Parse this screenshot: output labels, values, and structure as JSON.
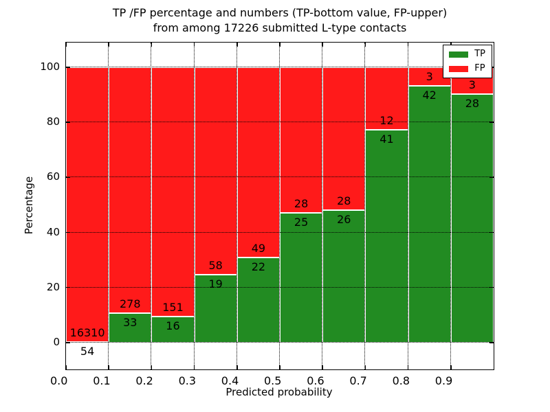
{
  "title": {
    "line1": "TP /FP percentage and numbers (TP-bottom value, FP-upper)",
    "line2": "from among 17226 submitted L-type contacts"
  },
  "axes": {
    "xlabel": "Predicted probability",
    "ylabel": "Percentage",
    "xtick_labels": [
      "0.0",
      "0.1",
      "0.2",
      "0.3",
      "0.4",
      "0.5",
      "0.6",
      "0.7",
      "0.8",
      "0.9"
    ],
    "ytick_labels": [
      "0",
      "20",
      "40",
      "60",
      "80",
      "100"
    ],
    "ytick_values": [
      0,
      20,
      40,
      60,
      80,
      100
    ]
  },
  "legend": {
    "position": "upper right",
    "items": [
      {
        "label": "TP",
        "color": "#228b22"
      },
      {
        "label": "FP",
        "color": "#ff1a1a"
      }
    ]
  },
  "colors": {
    "tp_green": "#228b22",
    "fp_red": "#ff1a1a",
    "bar_edge": "#ffffff",
    "grid": "#000000",
    "background": "#ffffff"
  },
  "chart_data": {
    "type": "bar",
    "stacked": true,
    "title": "TP /FP percentage and numbers (TP-bottom value, FP-upper) from among 17226 submitted L-type contacts",
    "xlabel": "Predicted probability",
    "ylabel": "Percentage",
    "total_contacts": 17226,
    "bin_width": 0.1,
    "bin_starts": [
      0.0,
      0.1,
      0.2,
      0.3,
      0.4,
      0.5,
      0.6,
      0.7,
      0.8,
      0.9
    ],
    "xlim": [
      0.0,
      1.0
    ],
    "ylim": [
      -9.75,
      109
    ],
    "grid": true,
    "legend_position": "upper right",
    "series": [
      {
        "name": "TP",
        "color": "#228b22",
        "counts": [
          54,
          33,
          16,
          19,
          22,
          25,
          26,
          41,
          42,
          28
        ],
        "percent": [
          0.33,
          10.61,
          9.58,
          24.68,
          30.99,
          47.17,
          48.15,
          77.36,
          93.33,
          90.32
        ]
      },
      {
        "name": "FP",
        "color": "#ff1a1a",
        "counts": [
          16310,
          278,
          151,
          58,
          49,
          28,
          28,
          12,
          3,
          3
        ],
        "percent": [
          99.67,
          89.39,
          90.42,
          75.32,
          69.01,
          52.83,
          51.85,
          22.64,
          6.67,
          9.68
        ]
      }
    ]
  }
}
